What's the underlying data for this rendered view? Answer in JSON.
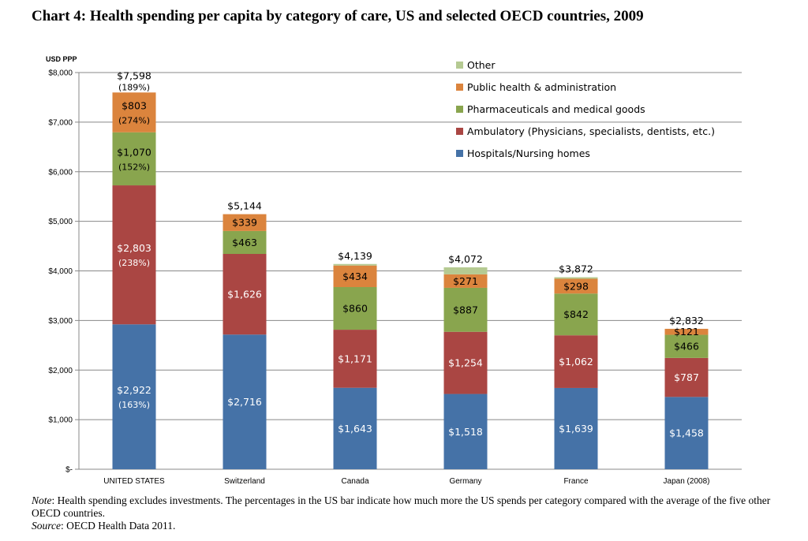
{
  "title": "Chart 4:  Health spending per capita by category of care, US and selected OECD countries, 2009",
  "chart_data": {
    "type": "bar",
    "stacked": true,
    "ylabel": "USD PPP",
    "ylim": [
      0,
      8000
    ],
    "yticks": [
      0,
      1000,
      2000,
      3000,
      4000,
      5000,
      6000,
      7000,
      8000
    ],
    "ytick_labels": [
      "$-",
      "$1,000",
      "$2,000",
      "$3,000",
      "$4,000",
      "$5,000",
      "$6,000",
      "$7,000",
      "$8,000"
    ],
    "grid": true,
    "legend_position": "top-right",
    "categories": [
      "UNITED STATES",
      "Switzerland",
      "Canada",
      "Germany",
      "France",
      "Japan (2008)"
    ],
    "series": [
      {
        "name": "Hospitals/Nursing homes",
        "color": "#4572a7",
        "values": [
          2922,
          2716,
          1643,
          1518,
          1639,
          1458
        ],
        "labels": [
          "$2,922",
          "$2,716",
          "$1,643",
          "$1,518",
          "$1,639",
          "$1,458"
        ],
        "pct_labels": [
          "(163%)",
          "",
          "",
          "",
          "",
          ""
        ]
      },
      {
        "name": "Ambulatory (Physicians, specialists, dentists, etc.)",
        "color": "#aa4643",
        "values": [
          2803,
          1626,
          1171,
          1254,
          1062,
          787
        ],
        "labels": [
          "$2,803",
          "$1,626",
          "$1,171",
          "$1,254",
          "$1,062",
          "$787"
        ],
        "pct_labels": [
          "(238%)",
          "",
          "",
          "",
          "",
          ""
        ]
      },
      {
        "name": "Pharmaceuticals and medical goods",
        "color": "#89a54e",
        "values": [
          1070,
          463,
          860,
          887,
          842,
          466
        ],
        "labels": [
          "$1,070",
          "$463",
          "$860",
          "$887",
          "$842",
          "$466"
        ],
        "pct_labels": [
          "(152%)",
          "",
          "",
          "",
          "",
          ""
        ]
      },
      {
        "name": "Public health & administration",
        "color": "#db843d",
        "values": [
          803,
          339,
          434,
          271,
          298,
          121
        ],
        "labels": [
          "$803",
          "$339",
          "$434",
          "$271",
          "$298",
          "$121"
        ],
        "pct_labels": [
          "(274%)",
          "",
          "",
          "",
          "",
          ""
        ]
      },
      {
        "name": "Other",
        "color": "#b5ca92",
        "values": [
          0,
          0,
          31,
          142,
          31,
          0
        ],
        "labels": [
          "",
          "",
          "",
          "",
          "",
          ""
        ],
        "pct_labels": [
          "",
          "",
          "",
          "",
          "",
          ""
        ]
      }
    ],
    "totals": [
      7598,
      5144,
      4139,
      4072,
      3872,
      2832
    ],
    "total_labels": [
      "$7,598",
      "$5,144",
      "$4,139",
      "$4,072",
      "$3,872",
      "$2,832"
    ],
    "total_pct_labels": [
      "(189%)",
      "",
      "",
      "",
      "",
      ""
    ]
  },
  "notes": {
    "note_label": "Note",
    "note_text": ":  Health spending excludes investments. The percentages in the US bar indicate how much more the US spends per category compared with the average of the five other OECD countries.",
    "source_label": "Source",
    "source_text": ": OECD Health Data 2011."
  }
}
